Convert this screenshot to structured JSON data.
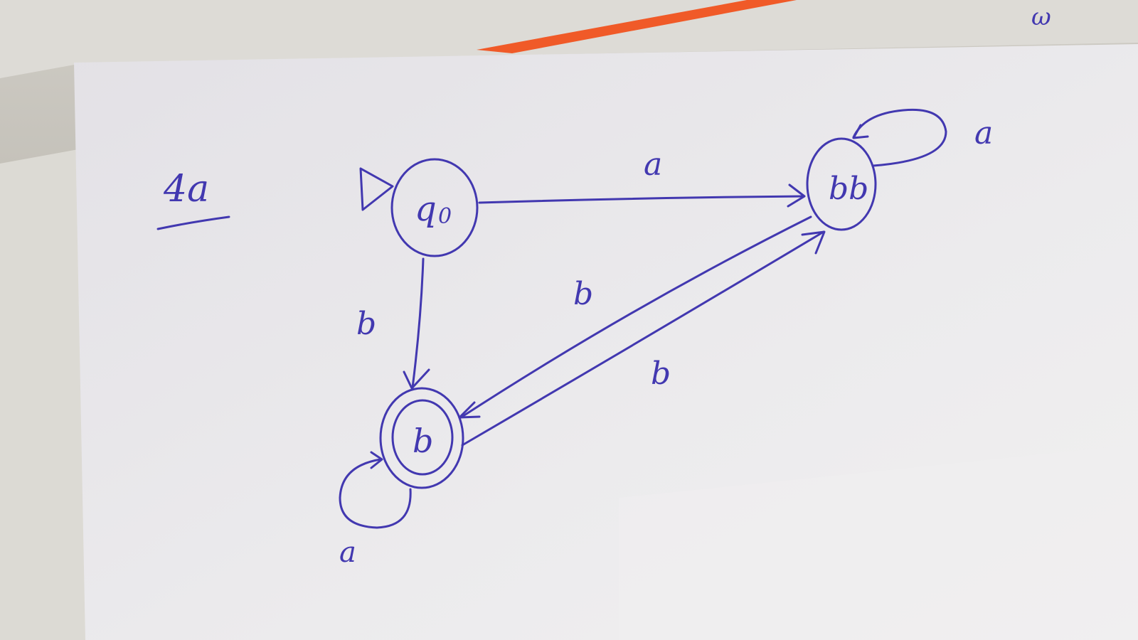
{
  "problem_label": "4a",
  "corner_mark": "ω",
  "automaton": {
    "states": [
      {
        "id": "q0",
        "label": "q",
        "subscript": "0",
        "start": true,
        "accepting": false
      },
      {
        "id": "bb",
        "label": "bb",
        "start": false,
        "accepting": false
      },
      {
        "id": "b",
        "label": "b",
        "start": false,
        "accepting": true
      }
    ],
    "transitions": [
      {
        "from": "q0",
        "to": "bb",
        "symbol": "a"
      },
      {
        "from": "q0",
        "to": "b",
        "symbol": "b"
      },
      {
        "from": "bb",
        "to": "b",
        "symbol": "b"
      },
      {
        "from": "b",
        "to": "bb",
        "symbol": "b"
      },
      {
        "from": "bb",
        "to": "bb",
        "symbol": "a"
      },
      {
        "from": "b",
        "to": "b",
        "symbol": "a"
      }
    ]
  },
  "colors": {
    "ink": "#4238b0",
    "paper": "#ebe9ec",
    "pen": "#f05a28",
    "background": "#a9a69c"
  }
}
